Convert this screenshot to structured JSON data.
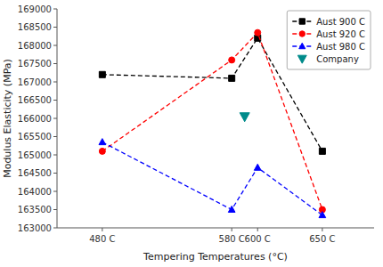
{
  "chart_data": {
    "type": "line",
    "x": [
      480,
      580,
      600,
      650
    ],
    "xlabel": "Tempering Temperatures (°C)",
    "ylabel": "Modulus Elasticity (MPa)",
    "xlim": [
      445,
      690
    ],
    "xticks": [
      {
        "value": 480,
        "label": "480 C"
      },
      {
        "value": 580,
        "label": "580 C"
      },
      {
        "value": 600,
        "label": "600 C"
      },
      {
        "value": 650,
        "label": "650 C"
      }
    ],
    "ylim": [
      163000,
      169000
    ],
    "yticks": [
      163000,
      163500,
      164000,
      164500,
      165000,
      165500,
      166000,
      166500,
      167000,
      167500,
      168000,
      168500,
      169000
    ],
    "grid": false,
    "legend": "upper right",
    "series": [
      {
        "name": "Aust 900 C",
        "color": "black",
        "marker": "square",
        "line_style": "dashed",
        "values": [
          167200,
          167100,
          168200,
          165100
        ]
      },
      {
        "name": "Aust 920 C",
        "color": "red",
        "marker": "circle",
        "line_style": "dashed",
        "values": [
          165100,
          167600,
          168350,
          163500
        ]
      },
      {
        "name": "Aust 980 C",
        "color": "blue",
        "marker": "triangle-up",
        "line_style": "dashed",
        "values": [
          165350,
          163500,
          164650,
          163350
        ]
      },
      {
        "name": "Company",
        "type": "scatter",
        "color": "#008B8B",
        "marker": "triangle-down",
        "x": [
          590
        ],
        "values": [
          166050
        ]
      }
    ]
  }
}
